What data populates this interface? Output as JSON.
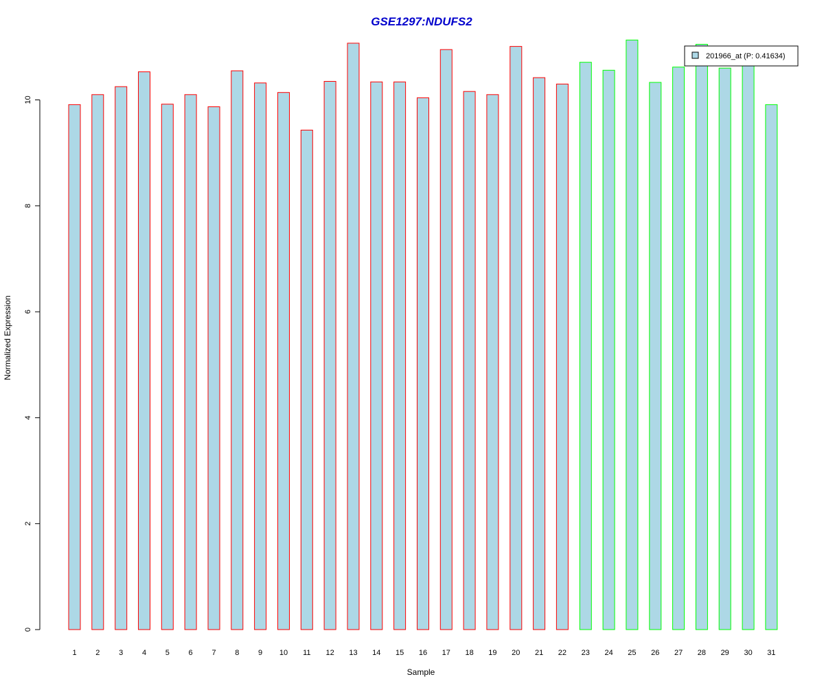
{
  "chart_data": {
    "type": "bar",
    "title": "GSE1297:NDUFS2",
    "xlabel": "Sample",
    "ylabel": "Normalized Expression",
    "categories": [
      "1",
      "2",
      "3",
      "4",
      "5",
      "6",
      "7",
      "8",
      "9",
      "10",
      "11",
      "12",
      "13",
      "14",
      "15",
      "16",
      "17",
      "18",
      "19",
      "20",
      "21",
      "22",
      "23",
      "24",
      "25",
      "26",
      "27",
      "28",
      "29",
      "30",
      "31"
    ],
    "values": [
      9.91,
      10.1,
      10.25,
      10.53,
      9.92,
      10.1,
      9.87,
      10.55,
      10.32,
      10.14,
      9.43,
      10.35,
      11.07,
      10.34,
      10.34,
      10.04,
      10.95,
      10.16,
      10.1,
      11.01,
      10.42,
      10.3,
      10.71,
      10.56,
      11.13,
      10.33,
      10.62,
      11.05,
      10.6,
      10.7,
      9.91
    ],
    "groups": [
      1,
      1,
      1,
      1,
      1,
      1,
      1,
      1,
      1,
      1,
      1,
      1,
      1,
      1,
      1,
      1,
      1,
      1,
      1,
      1,
      1,
      1,
      2,
      2,
      2,
      2,
      2,
      2,
      2,
      2,
      2
    ],
    "ylim": [
      0,
      11.13
    ],
    "yticks": [
      0,
      2,
      4,
      6,
      8,
      10
    ],
    "legend": {
      "label": "201966_at (P: 0.41634)",
      "position": "top-right"
    },
    "colors": {
      "title": "#0000cc",
      "bar_fill": "#add8e6",
      "group1_border": "#ff0000",
      "group2_border": "#00ff00",
      "axis": "#000000"
    }
  }
}
